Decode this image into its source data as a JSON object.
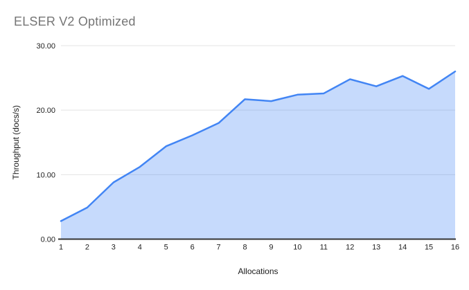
{
  "chart_data": {
    "type": "area",
    "title": "ELSER V2 Optimized",
    "xlabel": "Allocations",
    "ylabel": "Throughput (docs/s)",
    "x": [
      1,
      2,
      3,
      4,
      5,
      6,
      7,
      8,
      9,
      10,
      11,
      12,
      13,
      14,
      15,
      16
    ],
    "values": [
      2.8,
      4.9,
      8.8,
      11.2,
      14.4,
      16.1,
      18.0,
      21.7,
      21.4,
      22.4,
      22.6,
      24.8,
      23.7,
      25.3,
      23.3,
      26.0
    ],
    "series_name": "Throughput",
    "ylim": [
      0,
      30
    ],
    "yticks": [
      0,
      10,
      20,
      30
    ],
    "ytick_labels": [
      "0.00",
      "10.00",
      "20.00",
      "30.00"
    ],
    "xtick_labels": [
      "1",
      "2",
      "3",
      "4",
      "5",
      "6",
      "7",
      "8",
      "9",
      "10",
      "11",
      "12",
      "13",
      "14",
      "15",
      "16"
    ],
    "grid": true,
    "legend": false
  },
  "colors": {
    "line": "#4285f4",
    "fill": "rgba(66,133,244,0.30)",
    "gridline": "#e3e3e3",
    "baseline": "#333333",
    "tick_text": "#212121",
    "axis_title_text": "#1a1a1a",
    "title_text": "#757575",
    "background": "#ffffff"
  }
}
